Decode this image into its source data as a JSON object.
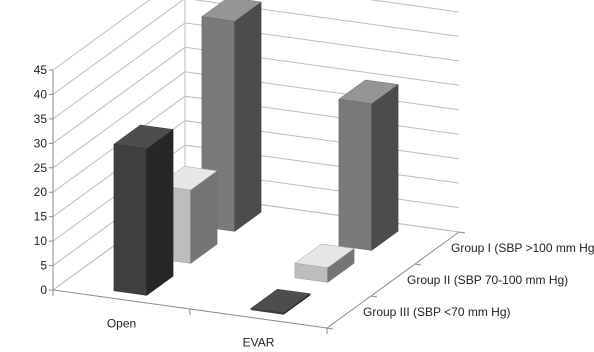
{
  "chart_data": {
    "type": "bar",
    "subtype": "3d-column",
    "categories": [
      "Open",
      "EVAR"
    ],
    "series": [
      {
        "name": "Group I (SBP >100 mm Hg)",
        "values": [
          43,
          30
        ],
        "color": "#7a7a7a"
      },
      {
        "name": "Group II (SBP 70-100 mm Hg)",
        "values": [
          15,
          3
        ],
        "color": "#bdbdbd"
      },
      {
        "name": "Group III (SBP <70 mm Hg)",
        "values": [
          30,
          0.3
        ],
        "color": "#3f3f3f"
      }
    ],
    "y_ticks": [
      "0",
      "5",
      "10",
      "15",
      "20",
      "25",
      "30",
      "35",
      "40",
      "45"
    ],
    "ylim": [
      0,
      45
    ],
    "grid": true,
    "legend": "none; series labels printed along depth axis at right"
  }
}
